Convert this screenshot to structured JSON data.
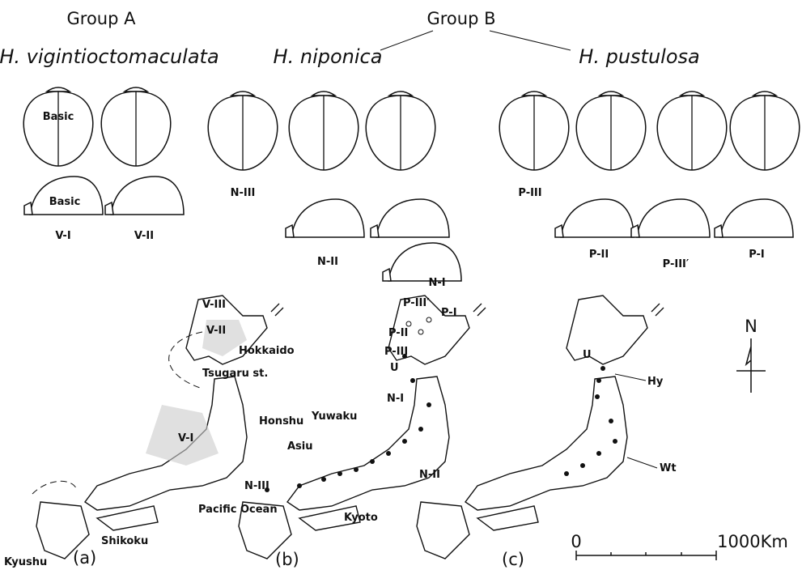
{
  "header": {
    "group_a": "Group A",
    "group_b": "Group B",
    "species": [
      "H. vigintioctomaculata",
      "H. niponica",
      "H. pustulosa"
    ]
  },
  "specimens": {
    "basic_dorsal": "Basic",
    "basic_lateral": "Basic",
    "labels": [
      "V-I",
      "V-II",
      "N-III",
      "N-II",
      "N-I",
      "P-III",
      "P-II",
      "P-III′",
      "P-I"
    ]
  },
  "map_a": {
    "labels": [
      "V-III",
      "V-II",
      "Hokkaido",
      "Tsugaru st.",
      "Honshu",
      "V-I",
      "Pacific Ocean",
      "Shikoku",
      "Kyushu"
    ],
    "panel": "(a)"
  },
  "map_b": {
    "labels": [
      "P-III′",
      "P-I",
      "P-II",
      "P-III",
      "U",
      "N-I",
      "Yuwaku",
      "Asiu",
      "N-III",
      "N-II",
      "Kyoto"
    ],
    "panel": "(b)"
  },
  "map_c": {
    "labels": [
      "U",
      "Hy",
      "Wt"
    ],
    "panel": "(c)",
    "north": "N",
    "scale_start": "0",
    "scale_end": "1000Km"
  }
}
